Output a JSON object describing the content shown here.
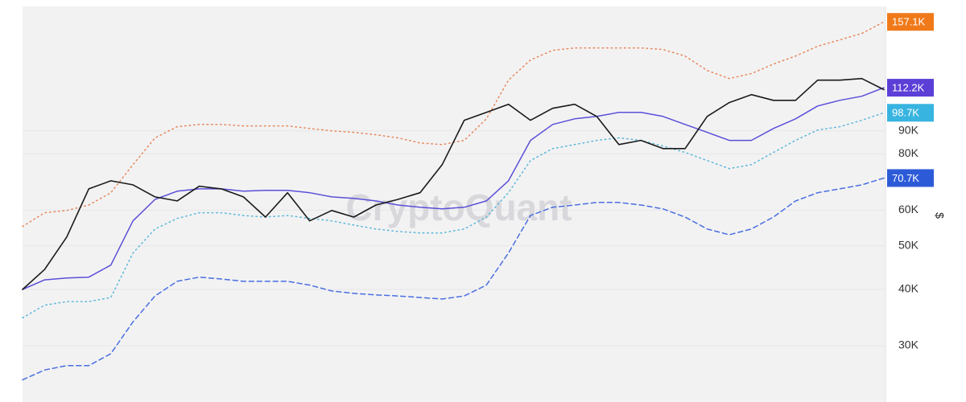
{
  "chart_data": {
    "type": "line",
    "watermark": "CryptoQuant",
    "y_label": "$",
    "log_scale": true,
    "grid": true,
    "ylim": [
      22500,
      170000
    ],
    "yticks": [
      {
        "value": 30000,
        "label": "30K"
      },
      {
        "value": 40000,
        "label": "40K"
      },
      {
        "value": 50000,
        "label": "50K"
      },
      {
        "value": 60000,
        "label": "60K"
      },
      {
        "value": 80000,
        "label": "80K"
      },
      {
        "value": 90000,
        "label": "90K"
      }
    ],
    "series": [
      {
        "color": "#e8875a",
        "dash": "dotted",
        "label_color": "#f07a1a",
        "values": [
          55200,
          59200,
          59900,
          61600,
          65600,
          75700,
          86800,
          91900,
          93000,
          93000,
          92300,
          92300,
          92300,
          91100,
          90000,
          89300,
          88200,
          86800,
          84600,
          83900,
          85700,
          95700,
          116600,
          129300,
          135800,
          137500,
          137500,
          137500,
          137500,
          136400,
          131900,
          122500,
          117600,
          120600,
          126600,
          131900,
          138700,
          143300,
          148100,
          157100
        ],
        "value_labels": [
          null,
          null,
          null,
          null,
          null,
          null,
          null,
          null,
          null,
          null,
          null,
          null,
          null,
          null,
          null,
          null,
          null,
          null,
          null,
          null,
          null,
          null,
          null,
          null,
          null,
          null,
          null,
          null,
          null,
          null,
          null,
          null,
          null,
          null,
          null,
          null,
          null,
          null,
          null,
          "157.1K"
        ]
      },
      {
        "color": "#5b4fd8",
        "dash": "solid",
        "label_color": "#5b3fd6",
        "values": [
          40000,
          42000,
          42400,
          42600,
          45300,
          56800,
          63400,
          66100,
          66900,
          66900,
          66100,
          66400,
          66400,
          65600,
          64200,
          63700,
          62900,
          61600,
          60900,
          60400,
          60900,
          62900,
          69700,
          85700,
          93000,
          95700,
          96900,
          98900,
          98900,
          96900,
          93000,
          89300,
          85700,
          85700,
          91100,
          95700,
          102200,
          105200,
          107400,
          112200
        ],
        "value_labels": [
          null,
          null,
          null,
          null,
          null,
          null,
          null,
          null,
          null,
          null,
          null,
          null,
          null,
          null,
          null,
          null,
          null,
          null,
          null,
          null,
          null,
          null,
          null,
          null,
          null,
          null,
          null,
          null,
          null,
          null,
          null,
          null,
          null,
          null,
          null,
          null,
          null,
          null,
          null,
          "112.2K"
        ]
      },
      {
        "color": "#5bb8d8",
        "dash": "dotted",
        "label_color": "#38b4e0",
        "values": [
          34600,
          36900,
          37600,
          37600,
          38400,
          48200,
          54500,
          57500,
          59200,
          59200,
          58400,
          57900,
          58400,
          57500,
          56800,
          55600,
          54500,
          53800,
          53400,
          53400,
          54500,
          57900,
          65600,
          77300,
          82200,
          83900,
          85700,
          86800,
          85700,
          83300,
          80600,
          77300,
          74200,
          75700,
          80600,
          85700,
          90400,
          91900,
          95000,
          98700
        ],
        "value_labels": [
          null,
          null,
          null,
          null,
          null,
          null,
          null,
          null,
          null,
          null,
          null,
          null,
          null,
          null,
          null,
          null,
          null,
          null,
          null,
          null,
          null,
          null,
          null,
          null,
          null,
          null,
          null,
          null,
          null,
          null,
          null,
          null,
          null,
          null,
          null,
          null,
          null,
          null,
          null,
          "98.7K"
        ]
      },
      {
        "color": "#4a6fe0",
        "dash": "dashed",
        "label_color": "#2d5bd8",
        "values": [
          25200,
          26500,
          27100,
          27100,
          28800,
          33900,
          38700,
          41700,
          42600,
          42200,
          41700,
          41700,
          41700,
          40900,
          39700,
          39200,
          38900,
          38700,
          38400,
          38100,
          38700,
          40900,
          48200,
          58400,
          60900,
          61600,
          62400,
          62400,
          61600,
          60400,
          57900,
          54500,
          52900,
          54500,
          57900,
          62900,
          65600,
          66900,
          68300,
          70700
        ],
        "value_labels": [
          null,
          null,
          null,
          null,
          null,
          null,
          null,
          null,
          null,
          null,
          null,
          null,
          null,
          null,
          null,
          null,
          null,
          null,
          null,
          null,
          null,
          null,
          null,
          null,
          null,
          null,
          null,
          null,
          null,
          null,
          null,
          null,
          null,
          null,
          null,
          null,
          null,
          null,
          null,
          "70.7K"
        ]
      },
      {
        "color": "#1a1a1a",
        "dash": "solid",
        "values": [
          40000,
          44300,
          52300,
          66900,
          69700,
          68300,
          64200,
          62900,
          67800,
          66900,
          64200,
          57900,
          65600,
          56800,
          59900,
          57900,
          61600,
          63400,
          65600,
          75700,
          95000,
          98900,
          103100,
          95000,
          101000,
          103100,
          96900,
          83900,
          85700,
          82200,
          82200,
          96900,
          104000,
          108300,
          105200,
          105200,
          116600,
          116600,
          117600,
          111100
        ]
      }
    ]
  }
}
